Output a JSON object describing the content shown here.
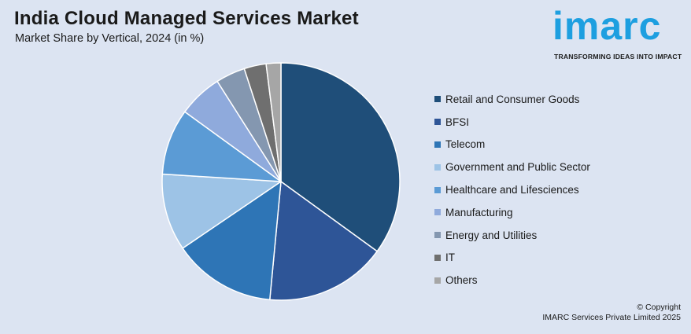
{
  "header": {
    "title": "India Cloud Managed Services Market",
    "subtitle": "Market Share by Vertical, 2024 (in %)"
  },
  "logo": {
    "word": "imarc",
    "tagline": "TRANSFORMING IDEAS INTO IMPACT",
    "color": "#1d9fe0"
  },
  "footer": {
    "line1": "© Copyright",
    "line2": "IMARC Services Private Limited 2025"
  },
  "chart_data": {
    "type": "pie",
    "title": "India Cloud Managed Services Market",
    "subtitle": "Market Share by Vertical, 2024 (in %)",
    "legend_position": "right",
    "start_angle": "12 o'clock, clockwise",
    "slices": [
      {
        "label": "Retail and Consumer Goods",
        "value": 35.0,
        "color": "#1f4e79"
      },
      {
        "label": "BFSI",
        "value": 16.5,
        "color": "#2e5597"
      },
      {
        "label": "Telecom",
        "value": 14.0,
        "color": "#2e75b6"
      },
      {
        "label": "Government and Public Sector",
        "value": 10.5,
        "color": "#9dc3e6"
      },
      {
        "label": "Healthcare and Lifesciences",
        "value": 9.0,
        "color": "#5b9bd5"
      },
      {
        "label": "Manufacturing",
        "value": 6.0,
        "color": "#8faadc"
      },
      {
        "label": "Energy and Utilities",
        "value": 4.0,
        "color": "#8497b0"
      },
      {
        "label": "IT",
        "value": 3.0,
        "color": "#6f6f6f"
      },
      {
        "label": "Others",
        "value": 2.0,
        "color": "#a6a6a6"
      }
    ]
  }
}
